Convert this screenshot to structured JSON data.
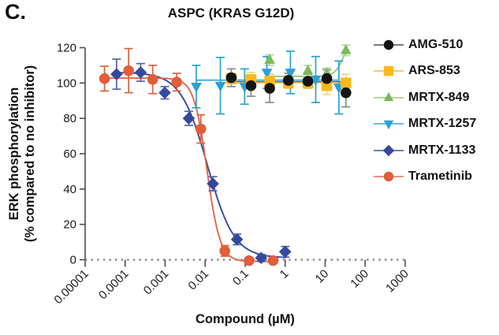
{
  "panel_label": "C.",
  "title": "ASPC (KRAS G12D)",
  "chart_data": {
    "type": "scatter",
    "subtype": "dose-response-curves",
    "title": "ASPC (KRAS G12D)",
    "xlabel": "Compound (µM)",
    "ylabel_line1": "ERK phosphorylation",
    "ylabel_line2": "(% compared to no inhibitor)",
    "x_scale": "log10",
    "x_tick_labels": [
      "0.00001",
      "0.0001",
      "0.001",
      "0.01",
      "0.1",
      "1",
      "10",
      "100",
      "1000"
    ],
    "x_tick_exponents": [
      -5,
      -4,
      -3,
      -2,
      -1,
      0,
      1,
      2,
      3
    ],
    "x_range_log": [
      -5,
      3
    ],
    "y_ticks": [
      0,
      20,
      40,
      60,
      80,
      100,
      120
    ],
    "y_range": [
      0,
      120
    ],
    "zero_line": {
      "style": "dotted",
      "color": "#8a8a8a"
    },
    "legend_position": "right",
    "series": [
      {
        "name": "AMG-510",
        "marker": "circle",
        "color": "#141414",
        "line_color": "#454545",
        "error_color": "#8a8a8a",
        "x": [
          0.045,
          0.14,
          0.41,
          1.2,
          3.7,
          11,
          33
        ],
        "y": [
          103,
          98.5,
          97,
          101.5,
          101,
          102.5,
          94.5
        ],
        "yerr": [
          5,
          6,
          8,
          4,
          4,
          5,
          8
        ],
        "fit": {
          "type": "flat",
          "y": 100.6,
          "range": [
            0.045,
            33
          ]
        }
      },
      {
        "name": "ARS-853",
        "marker": "square",
        "color": "#FBB81C",
        "line_color": "#EDB53A",
        "error_color": "#F3D689",
        "x": [
          0.045,
          0.14,
          0.41,
          1.2,
          3.7,
          11,
          33
        ],
        "y": [
          102.5,
          102,
          101,
          100,
          100,
          98.5,
          100
        ],
        "yerr": [
          3,
          4,
          4,
          3,
          3,
          5,
          5
        ],
        "fit": {
          "type": "flat",
          "y": 100.2,
          "range": [
            0.045,
            33
          ]
        }
      },
      {
        "name": "MRTX-849",
        "marker": "triangle-up",
        "color": "#7CBA59",
        "line_color": "#97C878",
        "error_color": "#B4D89B",
        "x": [
          0.41,
          3.7,
          11,
          33
        ],
        "y": [
          113,
          107,
          105.5,
          118.5
        ],
        "yerr": [
          3,
          3,
          3,
          3
        ],
        "fit": {
          "type": "points",
          "pts": [
            [
              0.41,
              103.8
            ],
            [
              1.2,
              103.8
            ],
            [
              3.7,
              103.8
            ],
            [
              9,
              104
            ],
            [
              14,
              105
            ],
            [
              20,
              108
            ],
            [
              27,
              113.5
            ],
            [
              33,
              118.5
            ]
          ]
        }
      },
      {
        "name": "MRTX-1257",
        "marker": "triangle-down",
        "color": "#29A2D3",
        "line_color": "#29A2D3",
        "error_color": "#29A2D3",
        "x": [
          0.006,
          0.024,
          0.097,
          0.35,
          1.35,
          5.8,
          22
        ],
        "y": [
          98,
          98.5,
          98,
          106,
          106,
          102,
          97.5
        ],
        "yerr": [
          12,
          16,
          10,
          9,
          12,
          13,
          15
        ],
        "fit": {
          "type": "flat",
          "y": 101.6,
          "range": [
            0.006,
            22
          ]
        }
      },
      {
        "name": "MRTX-1133",
        "marker": "diamond",
        "color": "#32499E",
        "line_color": "#32499E",
        "error_color": "#5265AC",
        "x": [
          6.1e-05,
          0.000244,
          0.00098,
          0.0039,
          0.0156,
          0.0625,
          0.25,
          1
        ],
        "y": [
          105,
          106,
          94.5,
          80,
          43,
          11.5,
          1,
          4.5
        ],
        "yerr": [
          8.5,
          5,
          3.5,
          4,
          4,
          3,
          2,
          3
        ],
        "fit": {
          "type": "sigmoid",
          "top": 106,
          "bottom": 1,
          "ic50": 0.0114,
          "hill": 1.3,
          "range": [
            5.8e-05,
            1.05
          ]
        }
      },
      {
        "name": "Trametinib",
        "marker": "circle",
        "color": "#E05E39",
        "line_color": "#E2674A",
        "error_color": "#E0603C",
        "x": [
          3.05e-05,
          0.000122,
          0.000488,
          0.00195,
          0.0078,
          0.031,
          0.125,
          0.5
        ],
        "y": [
          102.5,
          107,
          102,
          100.5,
          74,
          5,
          -0.5,
          -0.5
        ],
        "yerr": [
          7,
          12.5,
          8,
          5,
          8,
          3,
          1.5,
          1.5
        ],
        "fit": {
          "type": "sigmoid",
          "top": 102.8,
          "bottom": -1,
          "ic50": 0.0111,
          "hill": 2.65,
          "range": [
            2.95e-05,
            0.52
          ]
        }
      }
    ]
  }
}
